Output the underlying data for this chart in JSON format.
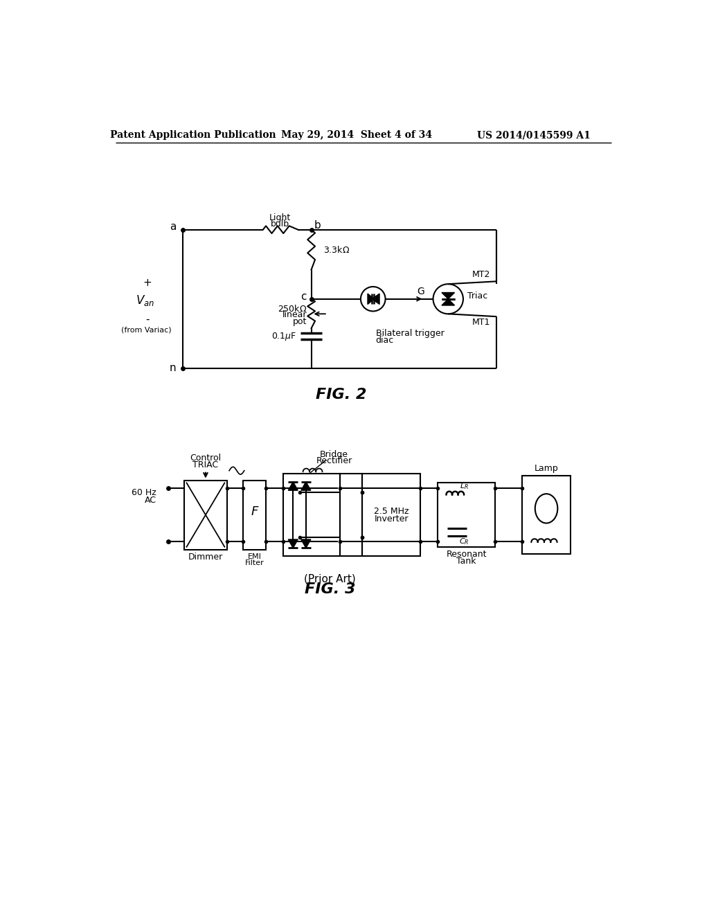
{
  "bg_color": "#ffffff",
  "line_color": "#000000",
  "header_left": "Patent Application Publication",
  "header_mid": "May 29, 2014  Sheet 4 of 34",
  "header_right": "US 2014/0145599 A1",
  "fig2_caption": "FIG. 2",
  "fig3_caption": "FIG. 3",
  "fig3_subcaption": "(Prior Art)"
}
